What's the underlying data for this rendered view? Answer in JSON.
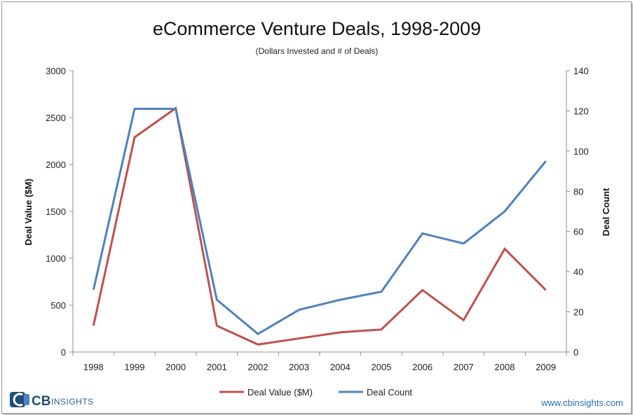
{
  "chart_data": {
    "type": "line",
    "title": "eCommerce Venture Deals, 1998-2009",
    "subtitle": "(Dollars Invested and # of Deals)",
    "categories": [
      "1998",
      "1999",
      "2000",
      "2001",
      "2002",
      "2003",
      "2004",
      "2005",
      "2006",
      "2007",
      "2008",
      "2009"
    ],
    "y_left": {
      "label": "Deal Value ($M)",
      "ticks": [
        "0",
        "500",
        "1000",
        "1500",
        "2000",
        "2500",
        "3000"
      ],
      "ylim": [
        0,
        3000
      ]
    },
    "y_right": {
      "label": "Deal  Count",
      "ticks": [
        "0",
        "20",
        "40",
        "60",
        "80",
        "100",
        "120",
        "140"
      ],
      "ylim": [
        0,
        140
      ]
    },
    "series": [
      {
        "name": "Deal Value ($M)",
        "axis": "left",
        "color": "#c0504d",
        "values": [
          280,
          2290,
          2600,
          280,
          80,
          145,
          210,
          240,
          660,
          340,
          1100,
          660
        ]
      },
      {
        "name": "Deal Count",
        "axis": "right",
        "color": "#4f81bd",
        "values": [
          31,
          121,
          121,
          26,
          9,
          21,
          26,
          30,
          59,
          54,
          70,
          95
        ]
      }
    ],
    "legend_position": "bottom"
  },
  "branding": {
    "logo_cb": "CB",
    "logo_insights": "INSIGHTS",
    "website": "www.cbinsights.com"
  }
}
